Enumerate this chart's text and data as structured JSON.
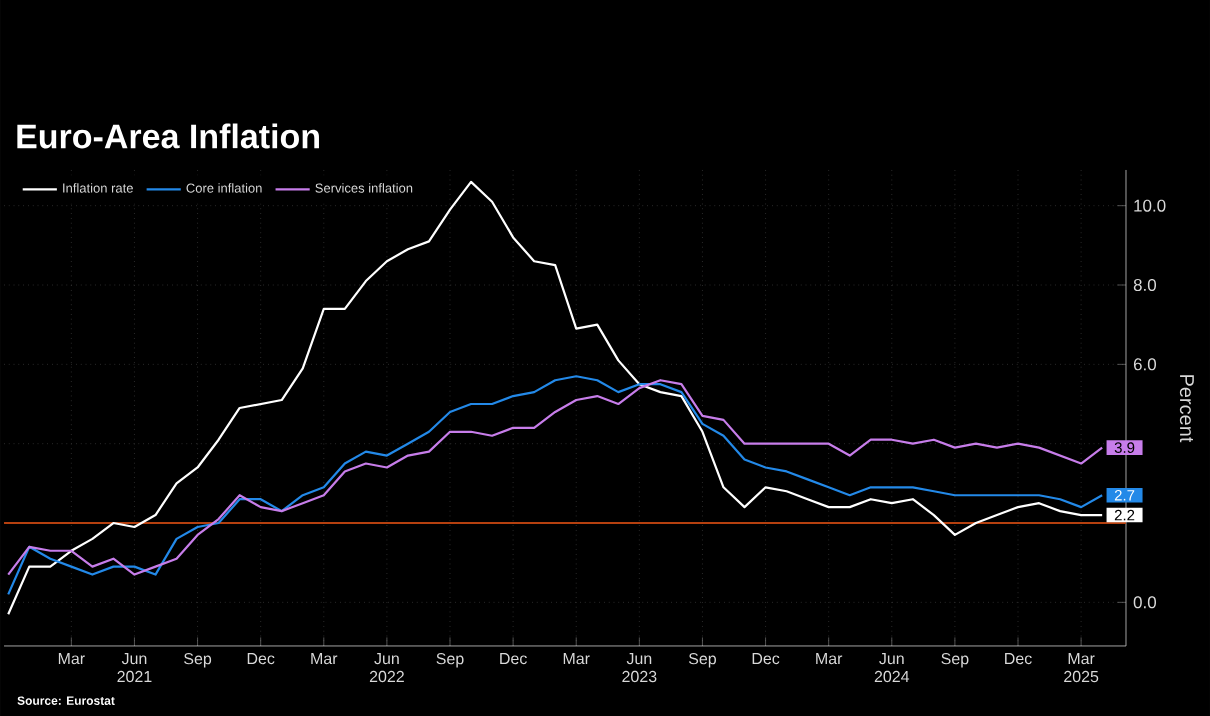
{
  "chart_data": {
    "type": "line",
    "title": "Euro-Area Inflation",
    "ylabel": "Percent",
    "annotations": [
      "Source: Eurostat"
    ],
    "x": [
      "2020-12",
      "2021-01",
      "2021-02",
      "2021-03",
      "2021-04",
      "2021-05",
      "2021-06",
      "2021-07",
      "2021-08",
      "2021-09",
      "2021-10",
      "2021-11",
      "2021-12",
      "2022-01",
      "2022-02",
      "2022-03",
      "2022-04",
      "2022-05",
      "2022-06",
      "2022-07",
      "2022-08",
      "2022-09",
      "2022-10",
      "2022-11",
      "2022-12",
      "2023-01",
      "2023-02",
      "2023-03",
      "2023-04",
      "2023-05",
      "2023-06",
      "2023-07",
      "2023-08",
      "2023-09",
      "2023-10",
      "2023-11",
      "2023-12",
      "2024-01",
      "2024-02",
      "2024-03",
      "2024-04",
      "2024-05",
      "2024-06",
      "2024-07",
      "2024-08",
      "2024-09",
      "2024-10",
      "2024-11",
      "2024-12",
      "2025-01",
      "2025-02",
      "2025-03",
      "2025-04"
    ],
    "series": [
      {
        "name": "Inflation rate",
        "color": "#ffffff",
        "values": [
          -0.3,
          0.9,
          0.9,
          1.3,
          1.6,
          2.0,
          1.9,
          2.2,
          3.0,
          3.4,
          4.1,
          4.9,
          5.0,
          5.1,
          5.9,
          7.4,
          7.4,
          8.1,
          8.6,
          8.9,
          9.1,
          9.9,
          10.6,
          10.1,
          9.2,
          8.6,
          8.5,
          6.9,
          7.0,
          6.1,
          5.5,
          5.3,
          5.2,
          4.3,
          2.9,
          2.4,
          2.9,
          2.8,
          2.6,
          2.4,
          2.4,
          2.6,
          2.5,
          2.6,
          2.2,
          1.7,
          2.0,
          2.2,
          2.4,
          2.5,
          2.3,
          2.2,
          2.2
        ],
        "value_labels": [
          null,
          null,
          null,
          null,
          null,
          null,
          null,
          null,
          null,
          null,
          null,
          null,
          null,
          null,
          null,
          null,
          null,
          null,
          null,
          null,
          null,
          null,
          null,
          null,
          null,
          null,
          null,
          null,
          null,
          null,
          null,
          null,
          null,
          null,
          null,
          null,
          null,
          null,
          null,
          null,
          null,
          null,
          null,
          null,
          null,
          null,
          null,
          null,
          null,
          null,
          null,
          null,
          "2.2"
        ]
      },
      {
        "name": "Core inflation",
        "color": "#2389e8",
        "values": [
          0.2,
          1.4,
          1.1,
          0.9,
          0.7,
          0.9,
          0.9,
          0.7,
          1.6,
          1.9,
          2.0,
          2.6,
          2.6,
          2.3,
          2.7,
          2.9,
          3.5,
          3.8,
          3.7,
          4.0,
          4.3,
          4.8,
          5.0,
          5.0,
          5.2,
          5.3,
          5.6,
          5.7,
          5.6,
          5.3,
          5.5,
          5.5,
          5.3,
          4.5,
          4.2,
          3.6,
          3.4,
          3.3,
          3.1,
          2.9,
          2.7,
          2.9,
          2.9,
          2.9,
          2.8,
          2.7,
          2.7,
          2.7,
          2.7,
          2.7,
          2.6,
          2.4,
          2.7
        ],
        "value_labels": [
          null,
          null,
          null,
          null,
          null,
          null,
          null,
          null,
          null,
          null,
          null,
          null,
          null,
          null,
          null,
          null,
          null,
          null,
          null,
          null,
          null,
          null,
          null,
          null,
          null,
          null,
          null,
          null,
          null,
          null,
          null,
          null,
          null,
          null,
          null,
          null,
          null,
          null,
          null,
          null,
          null,
          null,
          null,
          null,
          null,
          null,
          null,
          null,
          null,
          null,
          null,
          null,
          "2.7"
        ]
      },
      {
        "name": "Services inflation",
        "color": "#c77dea",
        "values": [
          0.7,
          1.4,
          1.3,
          1.3,
          0.9,
          1.1,
          0.7,
          0.9,
          1.1,
          1.7,
          2.1,
          2.7,
          2.4,
          2.3,
          2.5,
          2.7,
          3.3,
          3.5,
          3.4,
          3.7,
          3.8,
          4.3,
          4.3,
          4.2,
          4.4,
          4.4,
          4.8,
          5.1,
          5.2,
          5.0,
          5.4,
          5.6,
          5.5,
          4.7,
          4.6,
          4.0,
          4.0,
          4.0,
          4.0,
          4.0,
          3.7,
          4.1,
          4.1,
          4.0,
          4.1,
          3.9,
          4.0,
          3.9,
          4.0,
          3.9,
          3.7,
          3.5,
          3.9
        ],
        "value_labels": [
          null,
          null,
          null,
          null,
          null,
          null,
          null,
          null,
          null,
          null,
          null,
          null,
          null,
          null,
          null,
          null,
          null,
          null,
          null,
          null,
          null,
          null,
          null,
          null,
          null,
          null,
          null,
          null,
          null,
          null,
          null,
          null,
          null,
          null,
          null,
          null,
          null,
          null,
          null,
          null,
          null,
          null,
          null,
          null,
          null,
          null,
          null,
          null,
          null,
          null,
          null,
          null,
          "3.9"
        ]
      }
    ],
    "xlim": [
      "2020-11-25",
      "2025-05-05"
    ],
    "xticks": [
      {
        "value": "2021-03",
        "label": "Mar"
      },
      {
        "value": "2021-06",
        "label": "Jun 2021"
      },
      {
        "value": "2021-09",
        "label": "Sep"
      },
      {
        "value": "2021-12",
        "label": "Dec"
      },
      {
        "value": "2022-03",
        "label": "Mar"
      },
      {
        "value": "2022-06",
        "label": "Jun 2022"
      },
      {
        "value": "2022-09",
        "label": "Sep"
      },
      {
        "value": "2022-12",
        "label": "Dec"
      },
      {
        "value": "2023-03",
        "label": "Mar"
      },
      {
        "value": "2023-06",
        "label": "Jun 2023"
      },
      {
        "value": "2023-09",
        "label": "Sep"
      },
      {
        "value": "2023-12",
        "label": "Dec"
      },
      {
        "value": "2024-03",
        "label": "Mar"
      },
      {
        "value": "2024-06",
        "label": "Jun 2024"
      },
      {
        "value": "2024-09",
        "label": "Sep"
      },
      {
        "value": "2024-12",
        "label": "Dec"
      },
      {
        "value": "2025-03",
        "label": "Mar 2025"
      }
    ],
    "ylim": [
      -1.1,
      10.9
    ],
    "yticks": [
      {
        "value": 0,
        "label": "0.0"
      },
      {
        "value": 2,
        "label": null
      },
      {
        "value": 4,
        "label": null
      },
      {
        "value": 6,
        "label": "6.0"
      },
      {
        "value": 8,
        "label": "8.0"
      },
      {
        "value": 10,
        "label": "10.0"
      }
    ],
    "ref_lines": [
      {
        "axis": "y",
        "value": 2,
        "color": "#b5400f"
      }
    ],
    "grid": true,
    "legend": "top left",
    "line_style": "solid"
  }
}
